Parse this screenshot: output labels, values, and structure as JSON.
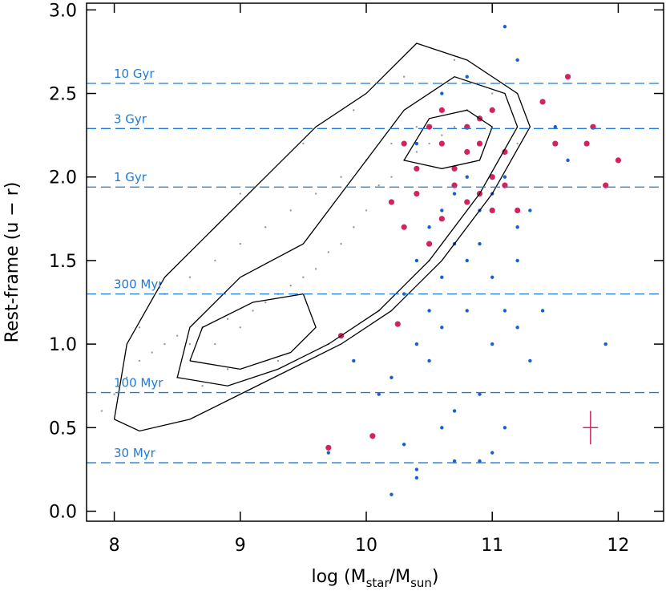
{
  "chart_data": {
    "type": "scatter",
    "xlabel_parts": [
      "log (M",
      "star",
      "/M",
      "sun",
      ")"
    ],
    "ylabel": "Rest-frame (u − r)",
    "xlim": [
      7.78,
      12.36
    ],
    "ylim": [
      -0.06,
      3.04
    ],
    "xticks": [
      8,
      9,
      10,
      11,
      12
    ],
    "yticks": [
      {
        "value": 0,
        "label": "0.0"
      },
      0.5,
      {
        "value": 1,
        "label": "1.0"
      },
      1.5,
      {
        "value": 2,
        "label": "2.0"
      },
      2.5,
      {
        "value": 3,
        "label": "3.0"
      }
    ],
    "reference_lines": [
      {
        "label": "10 Gyr",
        "value": 2.56
      },
      {
        "label": "3 Gyr",
        "value": 2.29
      },
      {
        "label": "1 Gyr",
        "value": 1.94
      },
      {
        "label": "300 Myr",
        "value": 1.3
      },
      {
        "label": "100 Myr",
        "value": 0.71
      },
      {
        "label": "30 Myr",
        "value": 0.29
      }
    ],
    "reference_color": "#1f7ad6",
    "series": [
      {
        "type": "scatter",
        "color": "#9a9a9a",
        "marker_size": 1.2,
        "x": [
          7.9,
          8.0,
          8.1,
          8.2,
          8.3,
          8.4,
          8.5,
          8.6,
          8.7,
          8.8,
          8.9,
          9.0,
          9.1,
          9.2,
          9.3,
          9.4,
          9.5,
          9.6,
          9.7,
          9.8,
          9.9,
          10.0,
          10.1,
          10.2,
          10.3,
          10.4,
          10.5,
          10.6,
          10.7,
          10.8,
          8.2,
          8.4,
          8.6,
          8.8,
          9.0,
          9.2,
          9.4,
          9.6,
          9.8,
          10.0,
          10.2,
          10.4,
          10.6,
          10.8,
          11.0,
          8.5,
          8.9,
          9.3,
          9.7,
          10.1,
          10.5,
          10.9,
          11.1,
          9.0,
          9.5,
          8.7,
          9.9,
          10.3,
          10.7,
          11.2
        ],
        "values": [
          0.6,
          0.7,
          0.8,
          0.9,
          0.95,
          1.0,
          1.05,
          1.0,
          1.1,
          1.0,
          1.15,
          1.1,
          1.2,
          1.25,
          1.3,
          1.35,
          1.4,
          1.45,
          1.55,
          1.6,
          1.7,
          1.8,
          1.95,
          2.0,
          2.1,
          2.15,
          2.2,
          2.25,
          2.3,
          2.3,
          1.1,
          1.3,
          1.4,
          1.5,
          1.6,
          1.7,
          1.8,
          1.9,
          2.0,
          2.1,
          2.2,
          2.3,
          2.4,
          2.4,
          2.5,
          0.8,
          0.85,
          0.9,
          1.0,
          1.2,
          1.5,
          1.8,
          2.0,
          1.9,
          2.2,
          0.75,
          2.4,
          2.6,
          2.7,
          2.2
        ]
      },
      {
        "type": "scatter",
        "color": "#1a5fd0",
        "marker_size": 2.2,
        "x": [
          10.3,
          10.4,
          10.5,
          10.6,
          10.7,
          10.8,
          10.9,
          11.0,
          11.1,
          11.2,
          10.5,
          10.6,
          10.7,
          10.8,
          10.9,
          11.0,
          11.1,
          11.2,
          11.3,
          10.4,
          10.6,
          10.8,
          11.0,
          11.2,
          10.2,
          10.5,
          10.7,
          10.9,
          11.1,
          11.4,
          10.3,
          10.6,
          10.9,
          11.3,
          11.5,
          9.9,
          10.1,
          10.4,
          10.7,
          11.0,
          11.6,
          11.9,
          10.2,
          10.4,
          10.6,
          10.8,
          10.4,
          11.1,
          11.2,
          9.7
        ],
        "values": [
          1.3,
          1.5,
          1.7,
          1.8,
          1.9,
          2.0,
          1.8,
          1.9,
          2.0,
          1.7,
          1.2,
          1.4,
          1.6,
          1.5,
          1.6,
          1.4,
          1.2,
          1.5,
          1.8,
          1.0,
          1.1,
          1.2,
          1.0,
          1.1,
          0.8,
          0.9,
          0.6,
          0.7,
          0.5,
          1.2,
          0.4,
          0.5,
          0.3,
          0.9,
          2.3,
          0.9,
          0.7,
          0.25,
          0.3,
          0.35,
          2.1,
          1.0,
          0.1,
          0.2,
          2.5,
          2.6,
          2.2,
          2.9,
          2.7,
          0.35
        ]
      },
      {
        "type": "scatter",
        "color": "#d0245a",
        "marker_size": 3.6,
        "x": [
          10.2,
          10.3,
          10.4,
          10.5,
          10.6,
          10.7,
          10.8,
          10.9,
          11.0,
          11.1,
          10.5,
          10.6,
          10.7,
          10.8,
          10.9,
          11.0,
          11.1,
          11.2,
          10.3,
          10.4,
          10.6,
          10.8,
          11.0,
          11.4,
          11.6,
          11.8,
          12.0,
          11.75,
          11.9,
          9.8,
          10.05,
          9.7,
          10.25,
          10.9,
          11.5
        ],
        "values": [
          1.85,
          1.7,
          2.05,
          2.3,
          2.2,
          1.95,
          2.3,
          2.2,
          2.4,
          1.95,
          1.6,
          1.75,
          2.05,
          1.85,
          1.9,
          2.0,
          2.15,
          1.8,
          2.2,
          1.9,
          2.4,
          2.15,
          1.8,
          2.45,
          2.6,
          2.3,
          2.1,
          2.2,
          1.95,
          1.05,
          0.45,
          0.38,
          1.12,
          2.35,
          2.2
        ]
      },
      {
        "type": "line",
        "color": "#000000",
        "x": [
          8.0,
          8.2,
          8.6,
          9.0,
          9.4,
          9.8,
          10.2,
          10.6,
          11.0,
          11.3,
          11.2,
          10.8,
          10.4,
          10.0,
          9.6,
          9.2,
          8.8,
          8.4,
          8.1,
          8.0
        ],
        "values": [
          0.55,
          0.48,
          0.55,
          0.7,
          0.85,
          1.0,
          1.2,
          1.5,
          1.9,
          2.3,
          2.5,
          2.7,
          2.8,
          2.5,
          2.3,
          2.0,
          1.7,
          1.4,
          1.0,
          0.55
        ]
      },
      {
        "type": "line",
        "color": "#000000",
        "x": [
          8.5,
          8.9,
          9.3,
          9.7,
          10.1,
          10.5,
          10.9,
          11.2,
          11.1,
          10.7,
          10.3,
          9.9,
          9.5,
          9.0,
          8.6,
          8.5
        ],
        "values": [
          0.8,
          0.75,
          0.85,
          1.0,
          1.2,
          1.5,
          1.9,
          2.3,
          2.5,
          2.6,
          2.4,
          2.0,
          1.6,
          1.4,
          1.1,
          0.8
        ]
      },
      {
        "type": "line",
        "color": "#000000",
        "x": [
          8.6,
          9.0,
          9.4,
          9.6,
          9.5,
          9.1,
          8.7,
          8.6
        ],
        "values": [
          0.9,
          0.85,
          0.95,
          1.1,
          1.3,
          1.25,
          1.1,
          0.9
        ]
      },
      {
        "type": "line",
        "color": "#000000",
        "x": [
          10.3,
          10.6,
          10.9,
          11.0,
          10.8,
          10.5,
          10.3
        ],
        "values": [
          2.1,
          2.05,
          2.1,
          2.3,
          2.4,
          2.35,
          2.1
        ]
      }
    ],
    "error_bar": {
      "x": 11.78,
      "y": 0.5,
      "xerr": 0.06,
      "yerr": 0.1,
      "color": "#d0245a"
    }
  }
}
